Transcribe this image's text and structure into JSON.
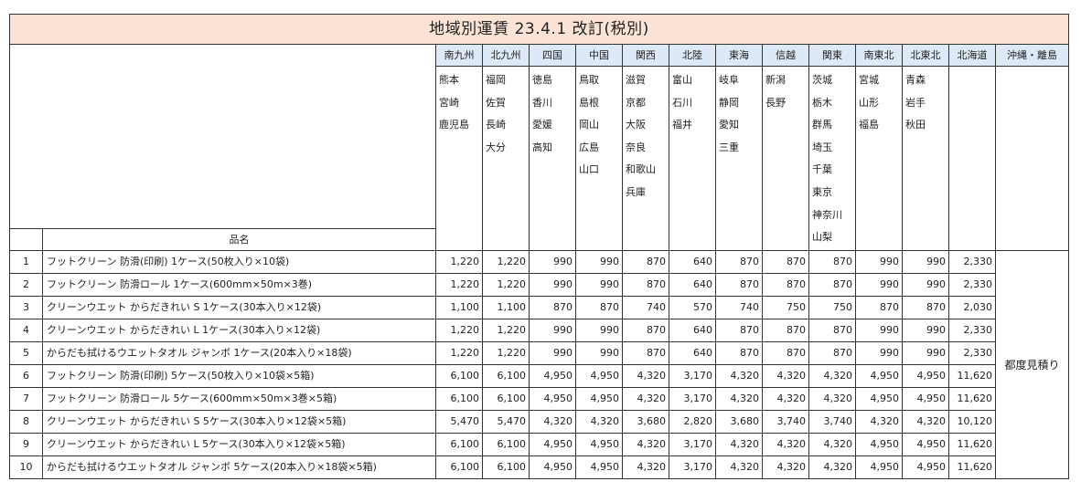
{
  "title": "地域別運賃 23.4.1 改訂(税別)",
  "header": {
    "name_label": "品名"
  },
  "regions": [
    {
      "name": "南九州",
      "prefectures": [
        "熊本",
        "宮崎",
        "鹿児島"
      ]
    },
    {
      "name": "北九州",
      "prefectures": [
        "福岡",
        "佐賀",
        "長崎",
        "大分"
      ]
    },
    {
      "name": "四国",
      "prefectures": [
        "徳島",
        "香川",
        "愛媛",
        "高知"
      ]
    },
    {
      "name": "中国",
      "prefectures": [
        "鳥取",
        "島根",
        "岡山",
        "広島",
        "山口"
      ]
    },
    {
      "name": "関西",
      "prefectures": [
        "滋賀",
        "京都",
        "大阪",
        "奈良",
        "和歌山",
        "兵庫"
      ]
    },
    {
      "name": "北陸",
      "prefectures": [
        "富山",
        "石川",
        "福井"
      ]
    },
    {
      "name": "東海",
      "prefectures": [
        "岐阜",
        "静岡",
        "愛知",
        "三重"
      ]
    },
    {
      "name": "信越",
      "prefectures": [
        "新潟",
        "長野"
      ]
    },
    {
      "name": "関東",
      "prefectures": [
        "茨城",
        "栃木",
        "群馬",
        "埼玉",
        "千葉",
        "東京",
        "神奈川",
        "山梨"
      ]
    },
    {
      "name": "南東北",
      "prefectures": [
        "宮城",
        "山形",
        "福島"
      ]
    },
    {
      "name": "北東北",
      "prefectures": [
        "青森",
        "岩手",
        "秋田"
      ]
    },
    {
      "name": "北海道",
      "prefectures": []
    },
    {
      "name": "沖縄・離島",
      "prefectures": []
    }
  ],
  "okinawa_note": "都度見積り",
  "rows": [
    {
      "no": "1",
      "name": "フットクリーン 防滑(印刷) 1ケース(50枚入り×10袋)",
      "prices": [
        "1,220",
        "1,220",
        "990",
        "990",
        "870",
        "640",
        "870",
        "870",
        "870",
        "990",
        "990",
        "2,330"
      ]
    },
    {
      "no": "2",
      "name": "フットクリーン 防滑ロール 1ケース(600mm×50m×3巻)",
      "prices": [
        "1,220",
        "1,220",
        "990",
        "990",
        "870",
        "640",
        "870",
        "870",
        "870",
        "990",
        "990",
        "2,330"
      ]
    },
    {
      "no": "3",
      "name": "クリーンウエット からだきれい S 1ケース(30本入り×12袋)",
      "prices": [
        "1,100",
        "1,100",
        "870",
        "870",
        "740",
        "570",
        "740",
        "750",
        "750",
        "870",
        "870",
        "2,030"
      ]
    },
    {
      "no": "4",
      "name": "クリーンウエット からだきれい L 1ケース(30本入り×12袋)",
      "prices": [
        "1,220",
        "1,220",
        "990",
        "990",
        "870",
        "640",
        "870",
        "870",
        "870",
        "990",
        "990",
        "2,330"
      ]
    },
    {
      "no": "5",
      "name": "からだも拭けるウエットタオル ジャンボ 1ケース(20本入り×18袋)",
      "prices": [
        "1,220",
        "1,220",
        "990",
        "990",
        "870",
        "640",
        "870",
        "870",
        "870",
        "990",
        "990",
        "2,330"
      ]
    },
    {
      "no": "6",
      "name": "フットクリーン 防滑(印刷) 5ケース(50枚入り×10袋×5箱)",
      "prices": [
        "6,100",
        "6,100",
        "4,950",
        "4,950",
        "4,320",
        "3,170",
        "4,320",
        "4,320",
        "4,320",
        "4,950",
        "4,950",
        "11,620"
      ]
    },
    {
      "no": "7",
      "name": "フットクリーン 防滑ロール 5ケース(600mm×50m×3巻×5箱)",
      "prices": [
        "6,100",
        "6,100",
        "4,950",
        "4,950",
        "4,320",
        "3,170",
        "4,320",
        "4,320",
        "4,320",
        "4,950",
        "4,950",
        "11,620"
      ]
    },
    {
      "no": "8",
      "name": "クリーンウエット からだきれい S 5ケース(30本入り×12袋×5箱)",
      "prices": [
        "5,470",
        "5,470",
        "4,320",
        "4,320",
        "3,680",
        "2,820",
        "3,680",
        "3,740",
        "3,740",
        "4,320",
        "4,320",
        "10,120"
      ]
    },
    {
      "no": "9",
      "name": "クリーンウエット からだきれい L 5ケース(30本入り×12袋×5箱)",
      "prices": [
        "6,100",
        "6,100",
        "4,950",
        "4,950",
        "4,320",
        "3,170",
        "4,320",
        "4,320",
        "4,320",
        "4,950",
        "4,950",
        "11,620"
      ]
    },
    {
      "no": "10",
      "name": "からだも拭けるウエットタオル ジャンボ 5ケース(20本入り×18袋×5箱)",
      "prices": [
        "6,100",
        "6,100",
        "4,950",
        "4,950",
        "4,320",
        "3,170",
        "4,320",
        "4,320",
        "4,320",
        "4,950",
        "4,950",
        "11,620"
      ]
    }
  ]
}
